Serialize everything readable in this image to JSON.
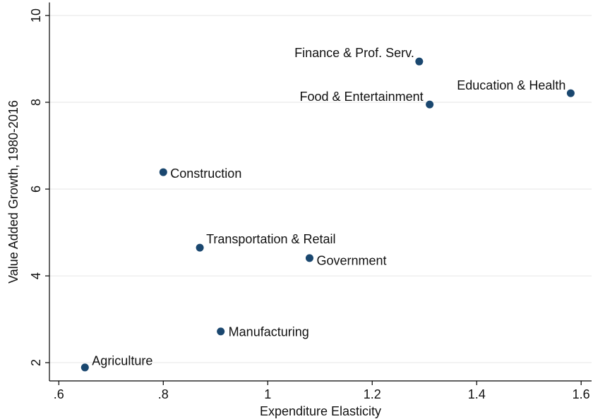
{
  "chart_data": {
    "type": "scatter",
    "x_label": "Expenditure Elasticity",
    "y_label": "Value Added Growth, 1980-2016",
    "labels": [
      "Agriculture",
      "Manufacturing",
      "Transportation & Retail",
      "Government",
      "Construction",
      "Finance & Prof. Serv.",
      "Food & Entertainment",
      "Education & Health"
    ],
    "x": [
      0.65,
      0.91,
      0.87,
      1.08,
      0.8,
      1.29,
      1.31,
      1.58
    ],
    "y": [
      1.89,
      2.72,
      4.65,
      4.41,
      6.39,
      8.94,
      7.95,
      8.21
    ],
    "color": "#1a476f",
    "xlim": [
      0.582,
      1.62
    ],
    "ylim": [
      1.58,
      10.3
    ],
    "xticks": [
      {
        "value": 0.6,
        "label": ".6"
      },
      {
        "value": 0.8,
        "label": ".8"
      },
      1,
      1.2,
      1.4,
      1.6
    ],
    "yticks": [
      2,
      4,
      6,
      8,
      10
    ],
    "grid": true
  }
}
